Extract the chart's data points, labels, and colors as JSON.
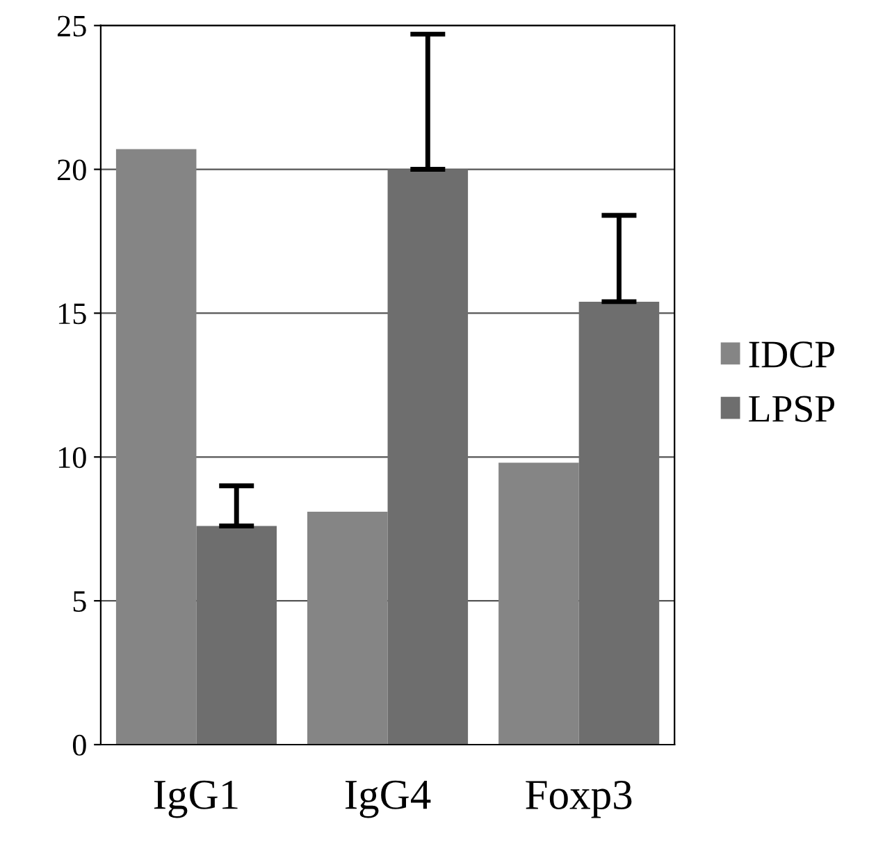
{
  "chart_data": {
    "type": "bar",
    "categories": [
      "IgG1",
      "IgG4",
      "Foxp3"
    ],
    "series": [
      {
        "name": "IDCP",
        "color": "#858585",
        "values": [
          20.7,
          8.1,
          9.8
        ],
        "errors": [
          null,
          null,
          null
        ]
      },
      {
        "name": "LPSP",
        "color": "#6e6e6e",
        "values": [
          7.6,
          20.0,
          15.4
        ],
        "errors": [
          [
            7.6,
            9.0
          ],
          [
            20.0,
            24.7
          ],
          [
            15.4,
            18.4
          ]
        ]
      }
    ],
    "ylim": [
      0,
      25
    ],
    "yticks": [
      0,
      5,
      10,
      15,
      20,
      25
    ],
    "grid": "y",
    "legend": "right"
  }
}
